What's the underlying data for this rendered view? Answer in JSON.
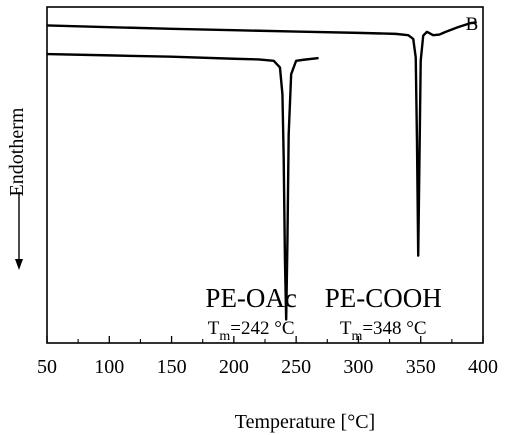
{
  "chart_data": {
    "type": "line",
    "title": "",
    "panel_label": "B",
    "xlabel": "Temperature [°C]",
    "ylabel": "Endotherm",
    "xlim": [
      50,
      400
    ],
    "x_ticks": [
      50,
      100,
      150,
      200,
      250,
      300,
      350,
      400
    ],
    "y_ticks_shown": false,
    "grid": false,
    "legend": "none",
    "series": [
      {
        "annotation": "PE-OAc",
        "tm_label": "T",
        "tm_sub": "m",
        "tm_value": "=242 °C",
        "peak_x": 242,
        "color": "#000000",
        "x": [
          50,
          100,
          150,
          200,
          220,
          232,
          237,
          239,
          240,
          241,
          242,
          243,
          244,
          246,
          250,
          256,
          268
        ],
        "y": [
          86.0,
          85.6,
          85.2,
          84.6,
          84.4,
          84.0,
          82.0,
          74.0,
          55.0,
          25.0,
          7.0,
          30.0,
          62.0,
          80.0,
          84.0,
          84.3,
          84.8
        ]
      },
      {
        "annotation": "PE-COOH",
        "tm_label": "T",
        "tm_sub": "m",
        "tm_value": "=348 °C",
        "peak_x": 348,
        "color": "#000000",
        "x": [
          50,
          100,
          150,
          200,
          250,
          300,
          330,
          340,
          344,
          346,
          347,
          348,
          349,
          350,
          352,
          355,
          360,
          365,
          370,
          380,
          390,
          395
        ],
        "y": [
          94.5,
          94.0,
          93.5,
          93.1,
          92.7,
          92.3,
          92.0,
          91.6,
          90.5,
          85.0,
          60.0,
          26.0,
          55.0,
          84.0,
          91.5,
          92.6,
          91.6,
          91.8,
          92.6,
          94.0,
          95.2,
          95.4
        ]
      }
    ]
  }
}
